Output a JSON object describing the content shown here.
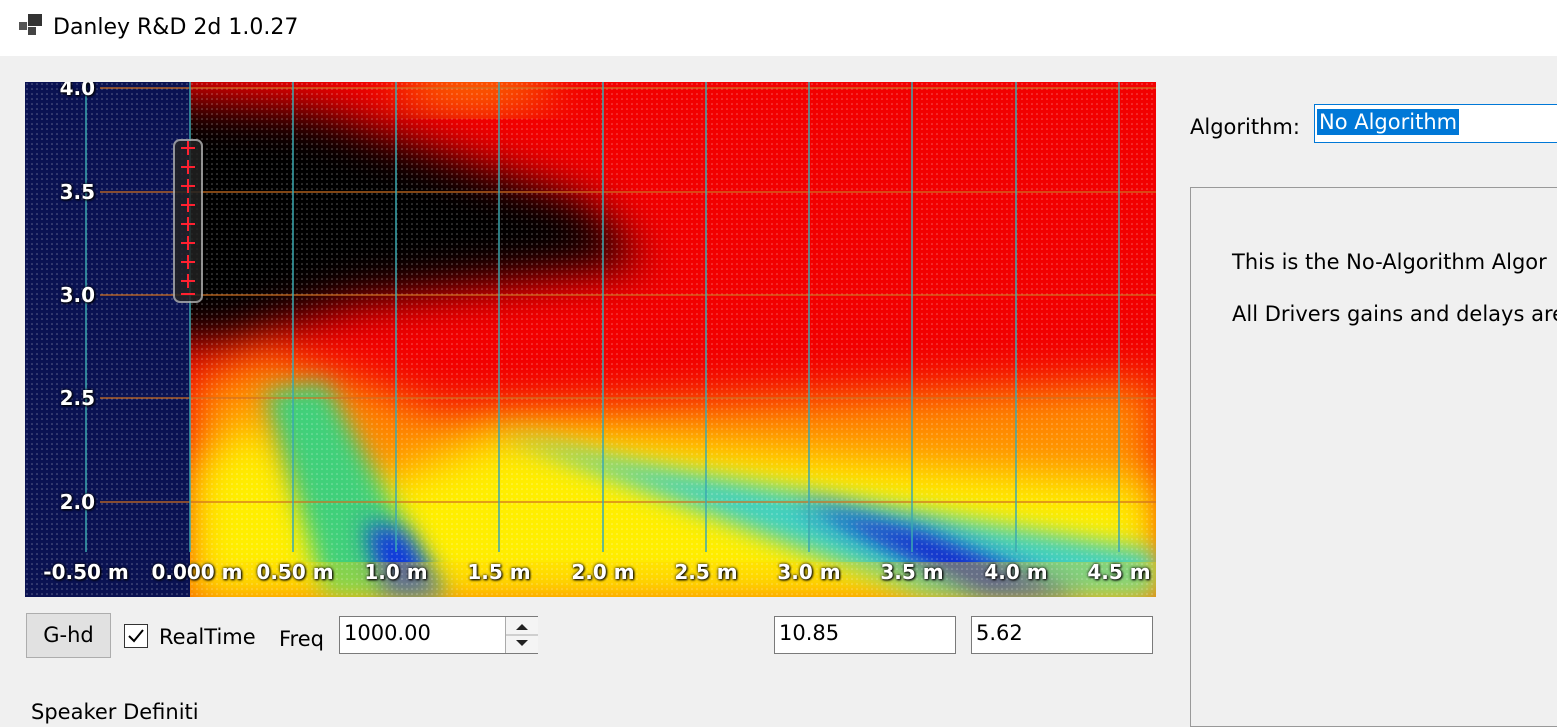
{
  "window": {
    "title": "Danley R&D 2d 1.0.27"
  },
  "plot": {
    "x_labels": [
      "-0.50 m",
      "0.000 m",
      "0.50 m",
      "1.0 m",
      "1.5 m",
      "2.0 m",
      "2.5 m",
      "3.0 m",
      "3.5 m",
      "4.0 m",
      "4.5 m"
    ],
    "y_labels": [
      "4.0",
      "3.5",
      "3.0",
      "2.5",
      "2.0"
    ]
  },
  "controls": {
    "button": "G-hd",
    "checkbox": "RealTime",
    "freq_label": "Freq",
    "freq_value": "1000.00",
    "field_1": "10.85",
    "field_2": "5.62"
  },
  "algorithm": {
    "label": "Algorithm:",
    "selected": "No Algorithm",
    "description": [
      "This is the No-Algorithm Algor",
      "All Drivers gains and delays are"
    ]
  },
  "section": {
    "title": "Speaker Definiti"
  }
}
